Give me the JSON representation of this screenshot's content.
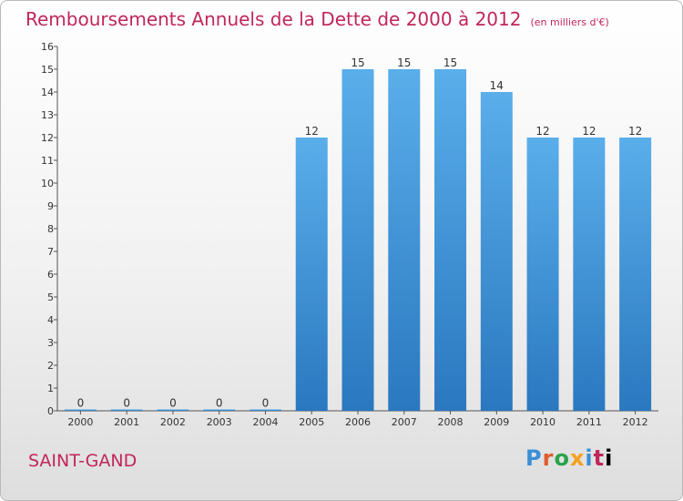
{
  "title": "Remboursements Annuels de la Dette de 2000 à 2012",
  "unit": "(en milliers d'€)",
  "commune": "SAINT-GAND",
  "logo": [
    "P",
    "r",
    "o",
    "x",
    "i",
    "t",
    "i"
  ],
  "colors": {
    "title": "#c0265a",
    "bar_top": "#5aaeea",
    "bar_bottom": "#2a78c0"
  },
  "chart_data": {
    "type": "bar",
    "categories": [
      "2000",
      "2001",
      "2002",
      "2003",
      "2004",
      "2005",
      "2006",
      "2007",
      "2008",
      "2009",
      "2010",
      "2011",
      "2012"
    ],
    "values": [
      0,
      0,
      0,
      0,
      0,
      12,
      15,
      15,
      15,
      14,
      12,
      12,
      12
    ],
    "ylim": [
      0,
      16
    ],
    "yticks": [
      0,
      1,
      2,
      3,
      4,
      5,
      6,
      7,
      8,
      9,
      10,
      11,
      12,
      13,
      14,
      15,
      16
    ],
    "grid": false,
    "data_labels": true
  }
}
